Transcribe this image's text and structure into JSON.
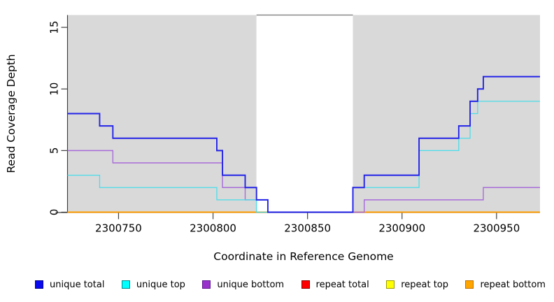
{
  "chart_data": {
    "type": "line",
    "subtype": "step-coverage-plot",
    "title": "",
    "xlabel": "Coordinate in Reference Genome",
    "ylabel": "Read Coverage Depth",
    "xlim": [
      2300723,
      2300973
    ],
    "ylim": [
      0,
      16
    ],
    "x_ticks": [
      2300750,
      2300800,
      2300850,
      2300900,
      2300950
    ],
    "y_ticks": [
      0,
      5,
      10,
      15
    ],
    "grid": false,
    "legend_position": "bottom",
    "axis_color": "#404040",
    "background_regions": [
      {
        "from": 2300723,
        "to": 2300823,
        "color": "#d9d9d9",
        "top_border": false
      },
      {
        "from": 2300823,
        "to": 2300874,
        "color": "#ffffff",
        "top_border": true
      },
      {
        "from": 2300874,
        "to": 2300973,
        "color": "#d9d9d9",
        "top_border": false
      }
    ],
    "gap_top_border_color": "#737373",
    "series": [
      {
        "name": "unique total",
        "line_color": "#2323e8",
        "swatch_fill": "#0a0af0",
        "swatch_border": "#00008b",
        "points": [
          [
            2300723,
            8
          ],
          [
            2300740,
            7
          ],
          [
            2300747,
            6
          ],
          [
            2300802,
            5
          ],
          [
            2300805,
            3
          ],
          [
            2300817,
            2
          ],
          [
            2300823,
            1
          ],
          [
            2300829,
            0
          ],
          [
            2300874,
            2
          ],
          [
            2300880,
            3
          ],
          [
            2300909,
            6
          ],
          [
            2300930,
            7
          ],
          [
            2300936,
            9
          ],
          [
            2300940,
            10
          ],
          [
            2300943,
            11
          ],
          [
            2300973,
            11
          ]
        ]
      },
      {
        "name": "unique top",
        "line_color": "#4adde9",
        "swatch_fill": "#00ffff",
        "swatch_border": "#008b8b",
        "points": [
          [
            2300723,
            3
          ],
          [
            2300740,
            2
          ],
          [
            2300802,
            1
          ],
          [
            2300823,
            0
          ],
          [
            2300874,
            2
          ],
          [
            2300909,
            5
          ],
          [
            2300930,
            6
          ],
          [
            2300936,
            8
          ],
          [
            2300940,
            9
          ],
          [
            2300973,
            9
          ]
        ]
      },
      {
        "name": "unique bottom",
        "line_color": "#a76bd9",
        "swatch_fill": "#9932cc",
        "swatch_border": "#5e1a8e",
        "points": [
          [
            2300723,
            5
          ],
          [
            2300747,
            4
          ],
          [
            2300805,
            2
          ],
          [
            2300817,
            1
          ],
          [
            2300829,
            0
          ],
          [
            2300880,
            1
          ],
          [
            2300943,
            2
          ],
          [
            2300973,
            2
          ]
        ]
      },
      {
        "name": "repeat total",
        "line_color": "#e01010",
        "swatch_fill": "#ff0000",
        "swatch_border": "#8b0000",
        "points": [
          [
            2300723,
            0
          ],
          [
            2300973,
            0
          ]
        ]
      },
      {
        "name": "repeat top",
        "line_color": "#ffee00",
        "swatch_fill": "#ffff00",
        "swatch_border": "#9a9a00",
        "points": [
          [
            2300723,
            0
          ],
          [
            2300973,
            0
          ]
        ]
      },
      {
        "name": "repeat bottom",
        "line_color": "#ff9d00",
        "swatch_fill": "#ffa500",
        "swatch_border": "#c07000",
        "points": [
          [
            2300723,
            0
          ],
          [
            2300973,
            0
          ]
        ]
      }
    ],
    "draw_order": [
      3,
      4,
      5,
      2,
      1,
      0
    ]
  }
}
